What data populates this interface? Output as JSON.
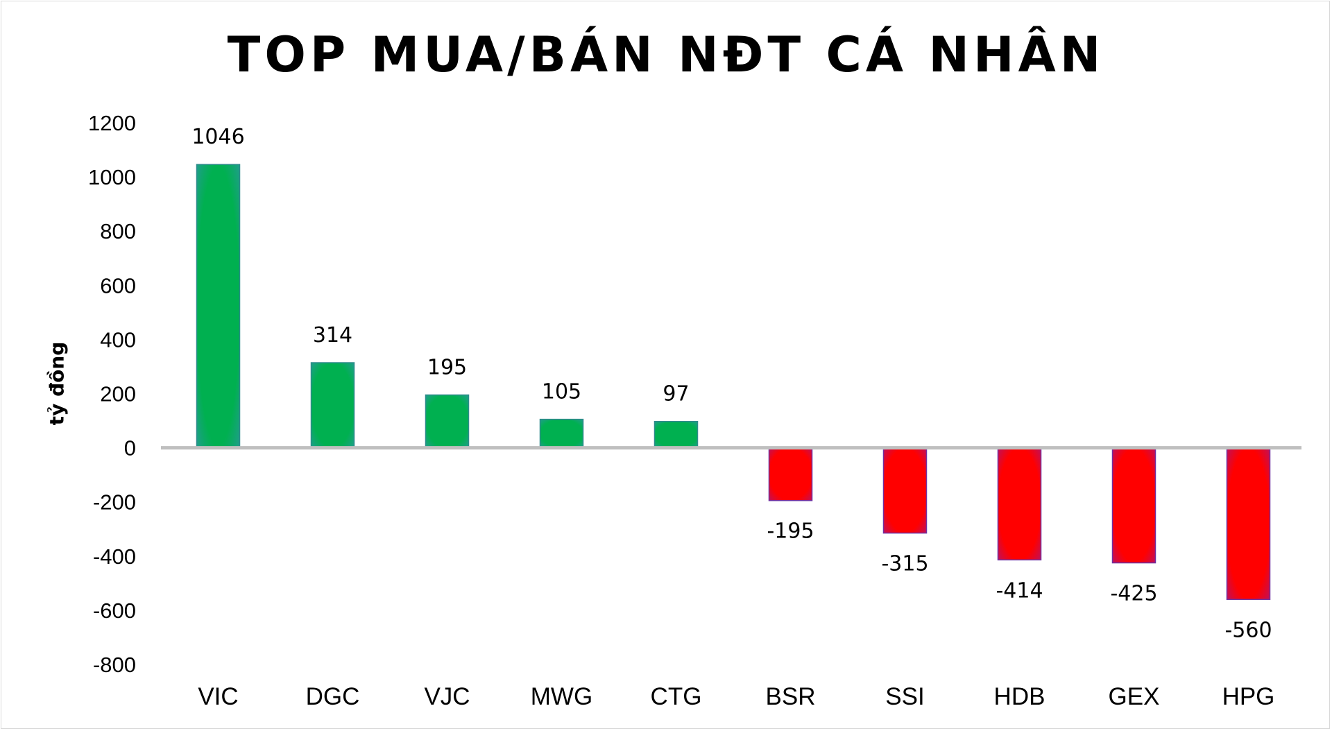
{
  "chart_data": {
    "type": "bar",
    "title": "TOP MUA/BÁN NĐT CÁ NHÂN",
    "ylabel": "tỷ đồng",
    "xlabel": "",
    "categories": [
      "VIC",
      "DGC",
      "VJC",
      "MWG",
      "CTG",
      "BSR",
      "SSI",
      "HDB",
      "GEX",
      "HPG"
    ],
    "values": [
      1046,
      314,
      195,
      105,
      97,
      -195,
      -315,
      -414,
      -425,
      -560
    ],
    "data_labels": [
      "1046",
      "314",
      "195",
      "105",
      "97",
      "-195",
      "-315",
      "-414",
      "-425",
      "-560"
    ],
    "ylim": [
      -800,
      1200
    ],
    "yticks": [
      1200,
      1000,
      800,
      600,
      400,
      200,
      0,
      -200,
      -400,
      -600,
      -800
    ],
    "ytick_labels": [
      "1200",
      "1000",
      "800",
      "600",
      "400",
      "200",
      "0",
      "-200",
      "-400",
      "-600",
      "-800"
    ],
    "grid": false,
    "legend": "none",
    "colors": {
      "positive": "#00b050",
      "negative": "#ff0000",
      "positive_edge": "#2e8b8b",
      "negative_edge": "#7030a0",
      "zero_line": "#bfbfbf",
      "border": "#d9d9d9"
    }
  }
}
